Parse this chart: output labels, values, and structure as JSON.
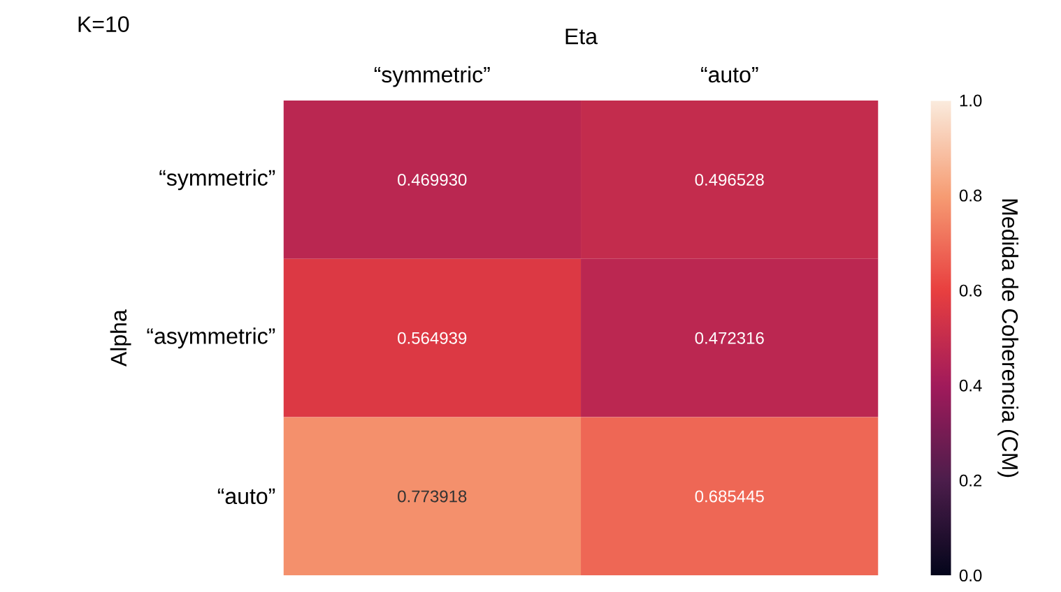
{
  "chart_data": {
    "type": "heatmap",
    "title": "K=10",
    "xlabel": "Eta",
    "ylabel": "Alpha",
    "clabel": "Medida de Coherencia (CM)",
    "categories": [
      "“symmetric”",
      "“auto”"
    ],
    "y_categories": [
      "“symmetric”",
      "“asymmetric”",
      "“auto”"
    ],
    "cells": [
      [
        0.46993,
        0.496528
      ],
      [
        0.564939,
        0.472316
      ],
      [
        0.773918,
        0.685445
      ]
    ],
    "cell_labels": [
      [
        "0.469930",
        "0.496528"
      ],
      [
        "0.564939",
        "0.472316"
      ],
      [
        "0.773918",
        "0.685445"
      ]
    ],
    "clim": [
      0.0,
      1.0
    ],
    "cticks": [
      {
        "value": 0.0,
        "label": "0.0"
      },
      {
        "value": 0.2,
        "label": "0.2"
      },
      {
        "value": 0.4,
        "label": "0.4"
      },
      {
        "value": 0.6,
        "label": "0.6"
      },
      {
        "value": 0.8,
        "label": "0.8"
      },
      {
        "value": 1.0,
        "label": "1.0"
      }
    ]
  }
}
